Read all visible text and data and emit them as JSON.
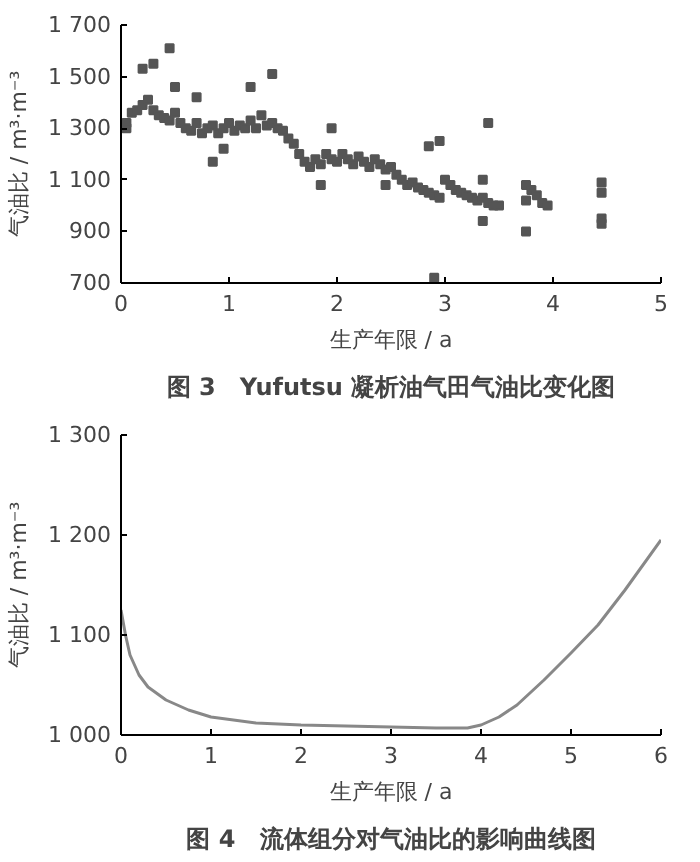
{
  "chart_data": [
    {
      "type": "scatter",
      "title": "图 3　Yufutsu 凝析油气田气油比变化图",
      "xlabel": "生产年限 / a",
      "ylabel": "气油比 / m³·m⁻³",
      "color": "#555555",
      "marker": "square",
      "grid": false,
      "x": [
        0.05,
        0.05,
        0.1,
        0.15,
        0.2,
        0.25,
        0.3,
        0.35,
        0.4,
        0.45,
        0.5,
        0.55,
        0.6,
        0.65,
        0.7,
        0.75,
        0.8,
        0.85,
        0.9,
        0.95,
        1.0,
        1.05,
        1.1,
        1.15,
        1.2,
        1.25,
        1.3,
        1.35,
        1.4,
        1.45,
        1.5,
        1.55,
        1.6,
        1.65,
        1.7,
        1.75,
        1.8,
        1.85,
        1.9,
        1.95,
        2.0,
        2.05,
        2.1,
        2.15,
        2.2,
        2.25,
        2.3,
        2.35,
        2.4,
        2.45,
        2.5,
        2.55,
        2.6,
        2.65,
        2.7,
        2.75,
        2.8,
        2.85,
        2.9,
        2.95,
        3.0,
        3.05,
        3.1,
        3.15,
        3.2,
        3.25,
        3.3,
        3.35,
        3.4,
        3.45,
        3.5,
        3.75,
        3.8,
        3.85,
        3.9,
        3.95,
        3.75,
        0.2,
        0.3,
        0.45,
        0.5,
        0.7,
        0.85,
        0.95,
        1.2,
        1.4,
        1.95,
        1.85,
        2.45,
        2.85,
        2.95,
        2.9,
        3.35,
        3.4,
        3.35,
        3.75,
        4.45,
        4.45,
        4.45,
        4.45
      ],
      "values": [
        1320,
        1300,
        1360,
        1370,
        1390,
        1410,
        1370,
        1350,
        1340,
        1330,
        1360,
        1320,
        1300,
        1290,
        1320,
        1280,
        1300,
        1310,
        1280,
        1300,
        1320,
        1290,
        1310,
        1300,
        1330,
        1300,
        1350,
        1310,
        1320,
        1300,
        1290,
        1260,
        1240,
        1200,
        1170,
        1150,
        1180,
        1160,
        1200,
        1180,
        1170,
        1200,
        1180,
        1160,
        1190,
        1170,
        1150,
        1180,
        1160,
        1140,
        1150,
        1120,
        1100,
        1080,
        1090,
        1070,
        1060,
        1050,
        1040,
        1030,
        1100,
        1080,
        1060,
        1050,
        1040,
        1030,
        1020,
        1030,
        1010,
        1000,
        1000,
        1080,
        1060,
        1040,
        1010,
        1000,
        1020,
        1530,
        1550,
        1610,
        1460,
        1420,
        1170,
        1220,
        1460,
        1510,
        1300,
        1080,
        1080,
        1230,
        1250,
        720,
        1100,
        1320,
        940,
        900,
        1090,
        1050,
        950,
        930
      ],
      "xlim": [
        0,
        5
      ],
      "xticks": [
        0,
        1,
        2,
        3,
        4,
        5
      ],
      "ylim": [
        700,
        1700
      ],
      "yticks": [
        {
          "value": 700,
          "label": "700"
        },
        {
          "value": 900,
          "label": "900"
        },
        {
          "value": 1100,
          "label": "1 100"
        },
        {
          "value": 1300,
          "label": "1 300"
        },
        {
          "value": 1500,
          "label": "1 500"
        },
        {
          "value": 1700,
          "label": "1 700"
        }
      ]
    },
    {
      "type": "line",
      "title": "图 4　流体组分对气油比的影响曲线图",
      "xlabel": "生产年限 / a",
      "ylabel": "气油比 / m³·m⁻³",
      "color": "#888888",
      "grid": false,
      "x": [
        0,
        0.05,
        0.1,
        0.2,
        0.3,
        0.5,
        0.75,
        1,
        1.5,
        2,
        2.5,
        3,
        3.5,
        3.85,
        4,
        4.2,
        4.4,
        4.7,
        5,
        5.3,
        5.6,
        6
      ],
      "values": [
        1125,
        1100,
        1080,
        1060,
        1048,
        1035,
        1025,
        1018,
        1012,
        1010,
        1009,
        1008,
        1007,
        1007,
        1010,
        1018,
        1030,
        1055,
        1082,
        1110,
        1145,
        1195
      ],
      "xlim": [
        0,
        6
      ],
      "xticks": [
        0,
        1,
        2,
        3,
        4,
        5,
        6
      ],
      "ylim": [
        1000,
        1300
      ],
      "yticks": [
        {
          "value": 1000,
          "label": "1 000"
        },
        {
          "value": 1100,
          "label": "1 100"
        },
        {
          "value": 1200,
          "label": "1 200"
        },
        {
          "value": 1300,
          "label": "1 300"
        }
      ]
    }
  ]
}
